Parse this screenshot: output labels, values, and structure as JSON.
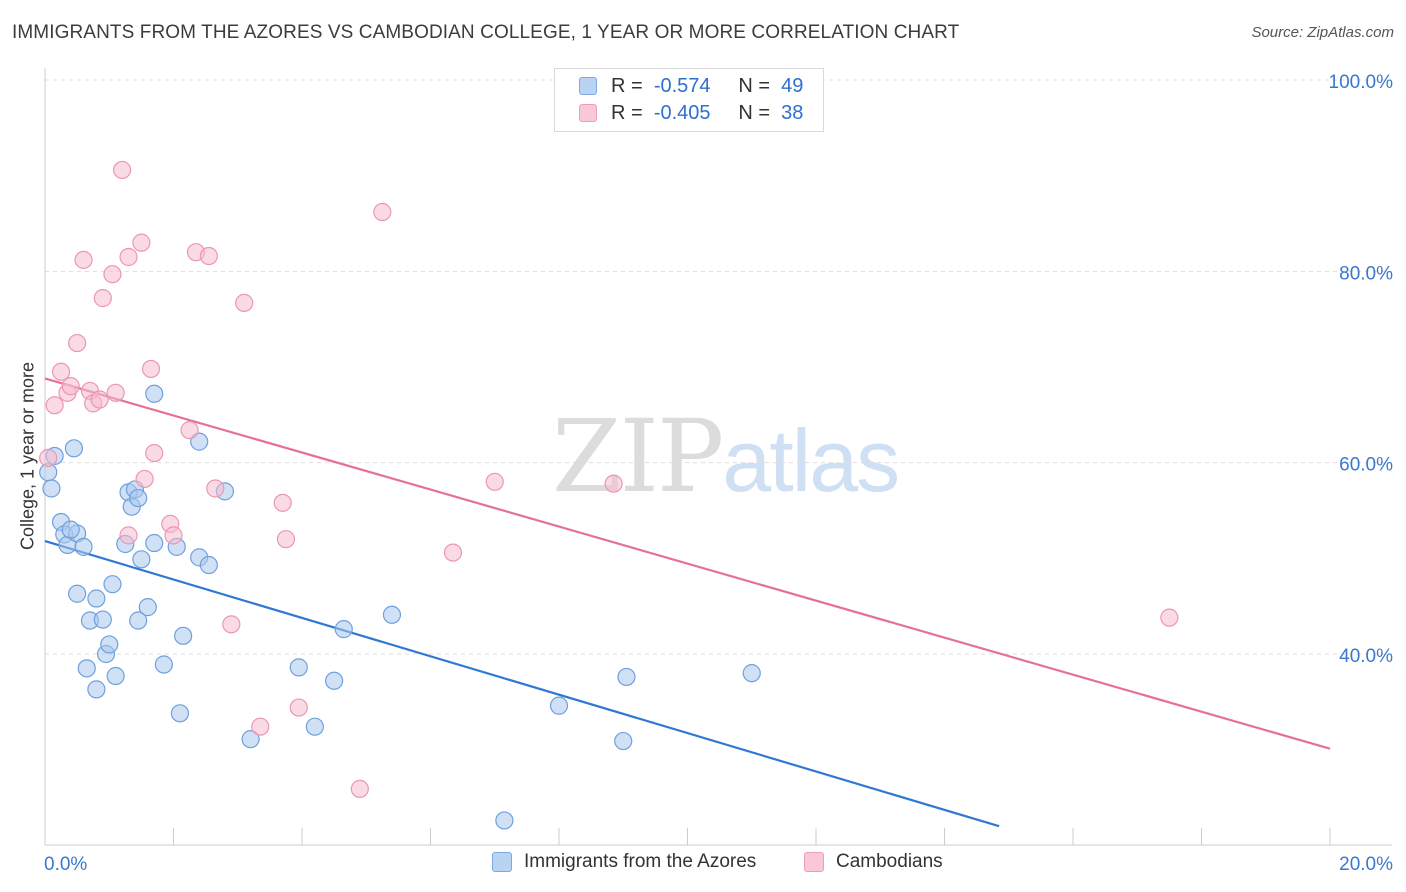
{
  "title": "IMMIGRANTS FROM THE AZORES VS CAMBODIAN COLLEGE, 1 YEAR OR MORE CORRELATION CHART",
  "source": "Source: ZipAtlas.com",
  "watermark": {
    "zip": "ZIP",
    "atlas": "atlas"
  },
  "legend_top": {
    "rows": [
      {
        "r_label": "R =",
        "r_value": "-0.574",
        "n_label": "N =",
        "n_value": "49"
      },
      {
        "r_label": "R =",
        "r_value": "-0.405",
        "n_label": "N =",
        "n_value": "38"
      }
    ]
  },
  "chart_data": {
    "type": "scatter",
    "title": "IMMIGRANTS FROM THE AZORES VS CAMBODIAN COLLEGE, 1 YEAR OR MORE CORRELATION CHART",
    "xlabel": "",
    "ylabel": "College, 1 year or more",
    "xlim": [
      0,
      20
    ],
    "ylim": [
      22,
      103
    ],
    "x_tick_labels": [
      {
        "value": 0,
        "label": "0.0%"
      },
      {
        "value": 20,
        "label": "20.0%"
      }
    ],
    "y_tick_labels": [
      {
        "value": 40,
        "label": "40.0%"
      },
      {
        "value": 60,
        "label": "60.0%"
      },
      {
        "value": 80,
        "label": "80.0%"
      },
      {
        "value": 100,
        "label": "100.0%"
      }
    ],
    "x_minor_ticks": [
      2,
      4,
      6,
      8,
      10,
      12,
      14,
      16,
      18,
      20
    ],
    "y_gridlines": [
      40,
      60,
      80,
      100
    ],
    "legend_position": "bottom-center",
    "series": [
      {
        "name": "Immigrants from the Azores",
        "color": "#a9c8ef",
        "stroke": "#6fa0dd",
        "line_color": "#2f78d4",
        "R": -0.574,
        "N": 49,
        "trend": {
          "x0": 0.0,
          "y0": 51.8,
          "x1": 14.85,
          "y1": 22.0
        },
        "points": [
          [
            0.05,
            59.0
          ],
          [
            0.1,
            57.3
          ],
          [
            0.15,
            60.7
          ],
          [
            0.25,
            53.8
          ],
          [
            0.3,
            52.5
          ],
          [
            0.35,
            51.4
          ],
          [
            0.45,
            61.5
          ],
          [
            0.5,
            52.6
          ],
          [
            0.6,
            51.2
          ],
          [
            0.5,
            46.3
          ],
          [
            0.65,
            38.5
          ],
          [
            0.7,
            43.5
          ],
          [
            0.8,
            36.3
          ],
          [
            0.8,
            45.8
          ],
          [
            0.9,
            43.6
          ],
          [
            0.95,
            40.0
          ],
          [
            1.05,
            47.3
          ],
          [
            1.1,
            37.7
          ],
          [
            1.25,
            51.5
          ],
          [
            1.3,
            56.9
          ],
          [
            1.35,
            55.4
          ],
          [
            1.4,
            57.2
          ],
          [
            1.45,
            56.3
          ],
          [
            1.45,
            43.5
          ],
          [
            1.5,
            49.9
          ],
          [
            1.6,
            44.9
          ],
          [
            1.7,
            51.6
          ],
          [
            1.7,
            67.2
          ],
          [
            1.85,
            38.9
          ],
          [
            2.05,
            51.2
          ],
          [
            2.1,
            33.8
          ],
          [
            2.15,
            41.9
          ],
          [
            2.4,
            50.1
          ],
          [
            2.4,
            62.2
          ],
          [
            2.55,
            49.3
          ],
          [
            2.8,
            57.0
          ],
          [
            3.2,
            31.1
          ],
          [
            3.95,
            38.6
          ],
          [
            4.2,
            32.4
          ],
          [
            4.5,
            37.2
          ],
          [
            4.65,
            42.6
          ],
          [
            5.4,
            44.1
          ],
          [
            7.15,
            22.6
          ],
          [
            8.0,
            34.6
          ],
          [
            9.0,
            30.9
          ],
          [
            9.05,
            37.6
          ],
          [
            11.0,
            38.0
          ],
          [
            1.0,
            41.0
          ],
          [
            0.4,
            53.0
          ]
        ]
      },
      {
        "name": "Cambodians",
        "color": "#f6bccd",
        "stroke": "#ec97b1",
        "line_color": "#e5709a",
        "R": -0.405,
        "N": 38,
        "trend": {
          "x0": 0.0,
          "y0": 68.8,
          "x1": 20.0,
          "y1": 30.1
        },
        "points": [
          [
            0.05,
            60.5
          ],
          [
            0.15,
            66.0
          ],
          [
            0.25,
            69.5
          ],
          [
            0.35,
            67.3
          ],
          [
            0.4,
            68.0
          ],
          [
            0.5,
            72.5
          ],
          [
            0.6,
            81.2
          ],
          [
            0.7,
            67.5
          ],
          [
            0.75,
            66.2
          ],
          [
            0.85,
            66.6
          ],
          [
            0.9,
            77.2
          ],
          [
            1.05,
            79.7
          ],
          [
            1.1,
            67.3
          ],
          [
            1.2,
            90.6
          ],
          [
            1.3,
            81.5
          ],
          [
            1.3,
            52.4
          ],
          [
            1.5,
            83.0
          ],
          [
            1.55,
            58.3
          ],
          [
            1.65,
            69.8
          ],
          [
            1.7,
            61.0
          ],
          [
            1.95,
            53.6
          ],
          [
            2.0,
            52.4
          ],
          [
            2.25,
            63.4
          ],
          [
            2.35,
            82.0
          ],
          [
            2.55,
            81.6
          ],
          [
            2.65,
            57.3
          ],
          [
            2.9,
            43.1
          ],
          [
            3.1,
            76.7
          ],
          [
            3.35,
            32.4
          ],
          [
            3.7,
            55.8
          ],
          [
            3.75,
            52.0
          ],
          [
            3.95,
            34.4
          ],
          [
            4.9,
            25.9
          ],
          [
            5.25,
            86.2
          ],
          [
            6.35,
            50.6
          ],
          [
            7.0,
            58.0
          ],
          [
            8.85,
            57.8
          ],
          [
            17.5,
            43.8
          ]
        ]
      }
    ]
  }
}
